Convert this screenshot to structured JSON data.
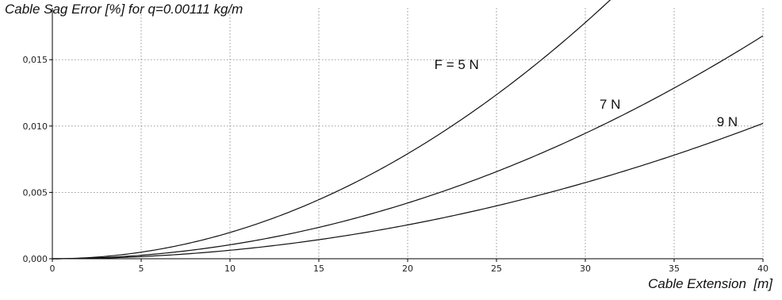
{
  "chart_data": {
    "type": "line",
    "title": "Cable Sag Error [%] for q=0.00111 kg/m",
    "xlabel": "Cable Extension  [m]",
    "ylabel": "",
    "xlim": [
      0,
      40
    ],
    "ylim": [
      0,
      0.019
    ],
    "xticks": [
      0,
      5,
      10,
      15,
      20,
      25,
      30,
      35,
      40
    ],
    "xtick_labels": [
      "0",
      "5",
      "10",
      "15",
      "20",
      "25",
      "30",
      "35",
      "40"
    ],
    "yticks": [
      0,
      0.005,
      0.01,
      0.015
    ],
    "ytick_labels": [
      "0,000",
      "0,005",
      "0,010",
      "0,015"
    ],
    "grid": true,
    "series": [
      {
        "name": "F = 5 N",
        "x": [
          0,
          5,
          10,
          15,
          20,
          25,
          30,
          31.8
        ],
        "y": [
          0,
          0.0005,
          0.0021,
          0.0047,
          0.0083,
          0.013,
          0.0187,
          0.02
        ]
      },
      {
        "name": "7 N",
        "x": [
          0,
          5,
          10,
          15,
          20,
          25,
          30,
          35,
          40
        ],
        "y": [
          0,
          0.00026,
          0.00106,
          0.0024,
          0.0042,
          0.0066,
          0.0095,
          0.0129,
          0.0168
        ]
      },
      {
        "name": "9 N",
        "x": [
          0,
          5,
          10,
          15,
          20,
          25,
          30,
          35,
          40
        ],
        "y": [
          0,
          0.00016,
          0.00064,
          0.00144,
          0.00256,
          0.004,
          0.00576,
          0.00784,
          0.0102
        ]
      }
    ],
    "annotations": [
      {
        "text": "F = 5 N",
        "x": 21.5,
        "y": 0.0143
      },
      {
        "text": "7 N",
        "x": 30.8,
        "y": 0.0113
      },
      {
        "text": "9 N",
        "x": 37.4,
        "y": 0.01
      }
    ],
    "colors": {
      "curve": "#111111",
      "grid": "#8a8a8a",
      "axis": "#000000"
    }
  }
}
